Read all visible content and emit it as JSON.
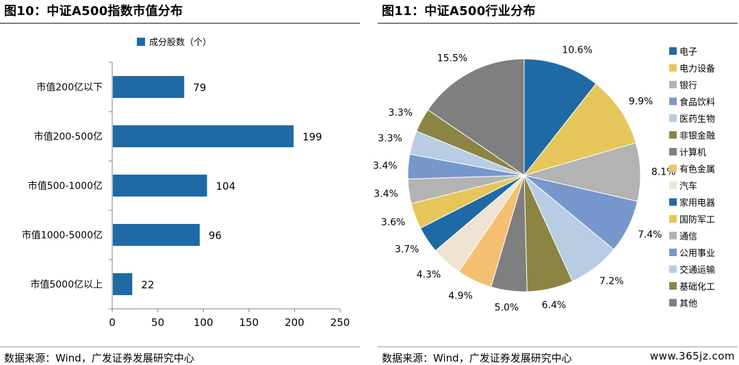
{
  "left": {
    "title": "图10：中证A500指数市值分布",
    "source": "数据来源：Wind，广发证券发展研究中心",
    "chart_data": {
      "type": "bar",
      "orientation": "horizontal",
      "title": "中证A500指数市值分布",
      "categories": [
        "市值200亿以下",
        "市值200-500亿",
        "市值500-1000亿",
        "市值1000-5000亿",
        "市值5000亿以上"
      ],
      "series": [
        {
          "name": "成分股数（个）",
          "values": [
            79,
            199,
            104,
            96,
            22
          ],
          "color": "#1f6aa5"
        }
      ],
      "xlim": [
        0,
        250
      ],
      "xticks": [
        0,
        50,
        100,
        150,
        200,
        250
      ],
      "legend_position": "top",
      "grid": false
    }
  },
  "right": {
    "title": "图11：中证A500行业分布",
    "source": "数据来源：Wind，广发证券发展研究中心",
    "watermark": "www.365jz.com",
    "chart_data": {
      "type": "pie",
      "title": "中证A500行业分布",
      "slices": [
        {
          "label": "电子",
          "value": 10.6,
          "display": "10.6%",
          "color": "#1f6aa5"
        },
        {
          "label": "电力设备",
          "value": 9.9,
          "display": "9.9%",
          "color": "#e6c65a"
        },
        {
          "label": "银行",
          "value": 8.1,
          "display": "8.1%",
          "color": "#b3b3b3"
        },
        {
          "label": "食品饮料",
          "value": 7.4,
          "display": "7.4%",
          "color": "#7797cc"
        },
        {
          "label": "医药生物",
          "value": 7.2,
          "display": "7.2%",
          "color": "#b8cce4"
        },
        {
          "label": "非银金融",
          "value": 6.4,
          "display": "6.4%",
          "color": "#8c8442"
        },
        {
          "label": "计算机",
          "value": 5.0,
          "display": "5.0%",
          "color": "#7f7f7f"
        },
        {
          "label": "有色金属",
          "value": 4.9,
          "display": "4.9%",
          "color": "#f5bf72"
        },
        {
          "label": "汽车",
          "value": 4.3,
          "display": "4.3%",
          "color": "#efe4d2"
        },
        {
          "label": "家用电器",
          "value": 3.7,
          "display": "3.7%",
          "color": "#1f6aa5"
        },
        {
          "label": "国防军工",
          "value": 3.6,
          "display": "3.6%",
          "color": "#e6c65a"
        },
        {
          "label": "通信",
          "value": 3.4,
          "display": "3.4%",
          "color": "#b3b3b3"
        },
        {
          "label": "公用事业",
          "value": 3.4,
          "display": "3.4%",
          "color": "#7797cc"
        },
        {
          "label": "交通运输",
          "value": 3.3,
          "display": "3.3%",
          "color": "#b8cce4"
        },
        {
          "label": "基础化工",
          "value": 3.3,
          "display": "3.3%",
          "color": "#8c8442"
        },
        {
          "label": "其他",
          "value": 15.5,
          "display": "15.5%",
          "color": "#7f7f7f"
        }
      ],
      "start": "12 o'clock",
      "direction": "clockwise",
      "legend_position": "right"
    }
  }
}
